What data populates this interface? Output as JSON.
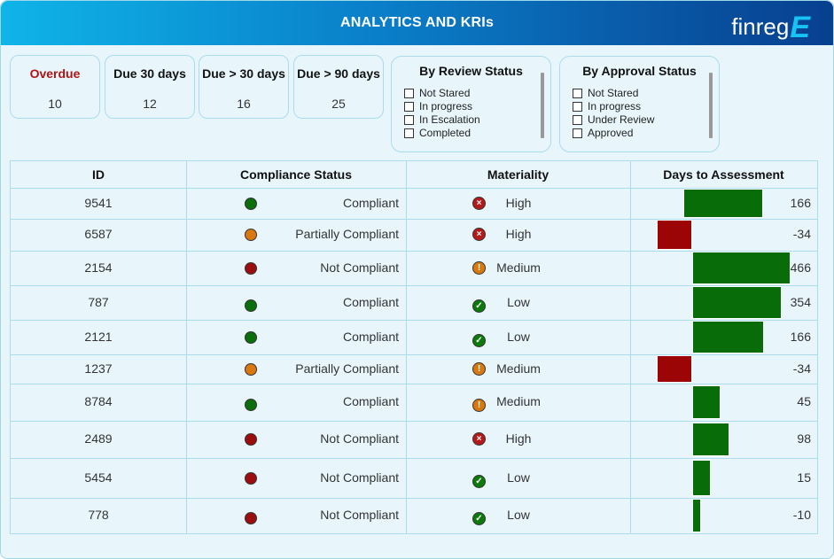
{
  "header": {
    "title": "ANALYTICS AND KRIs",
    "logo_text": "finreg",
    "logo_mark": "E"
  },
  "cards": [
    {
      "label": "Overdue",
      "value": "10"
    },
    {
      "label": "Due 30 days",
      "value": "12"
    },
    {
      "label": "Due > 30 days",
      "value": "16"
    },
    {
      "label": "Due > 90 days",
      "value": "25"
    }
  ],
  "review_filter": {
    "title": "By Review Status",
    "options": [
      "Not Stared",
      "In progress",
      "In Escalation",
      "Completed"
    ]
  },
  "approval_filter": {
    "title": "By Approval Status",
    "options": [
      "Not Stared",
      "In progress",
      "Under Review",
      "Approved"
    ]
  },
  "table": {
    "headers": [
      "ID",
      "Compliance Status",
      "Materiality",
      "Days to Assessment"
    ],
    "rows": [
      {
        "id": "9541",
        "compliance": "Compliant",
        "materiality": "High",
        "days": 166
      },
      {
        "id": "6587",
        "compliance": "Partially Compliant",
        "materiality": "High",
        "days": -34
      },
      {
        "id": "2154",
        "compliance": "Not Compliant",
        "materiality": "Medium",
        "days": 466
      },
      {
        "id": "787",
        "compliance": "Compliant",
        "materiality": "Low",
        "days": 354
      },
      {
        "id": "2121",
        "compliance": "Compliant",
        "materiality": "Low",
        "days": 166
      },
      {
        "id": "1237",
        "compliance": "Partially Compliant",
        "materiality": "Medium",
        "days": -34
      },
      {
        "id": "8784",
        "compliance": "Compliant",
        "materiality": "Medium",
        "days": 45
      },
      {
        "id": "2489",
        "compliance": "Not Compliant",
        "materiality": "High",
        "days": 98
      },
      {
        "id": "5454",
        "compliance": "Not Compliant",
        "materiality": "Low",
        "days": 15
      },
      {
        "id": "778",
        "compliance": "Not Compliant",
        "materiality": "Low",
        "days": -10
      }
    ]
  },
  "colors": {
    "compliant": "#0a6e0a",
    "partially_compliant": "#d9780f",
    "not_compliant": "#9c0d0d",
    "bar_positive": "#086c08",
    "bar_negative": "#9c0505",
    "materiality_high": "#b51a1a",
    "materiality_medium": "#d9780f",
    "materiality_low": "#0b7a0b"
  },
  "icons": {
    "materiality_high": "x-circle-icon",
    "materiality_medium": "exclamation-circle-icon",
    "materiality_low": "check-circle-icon"
  }
}
